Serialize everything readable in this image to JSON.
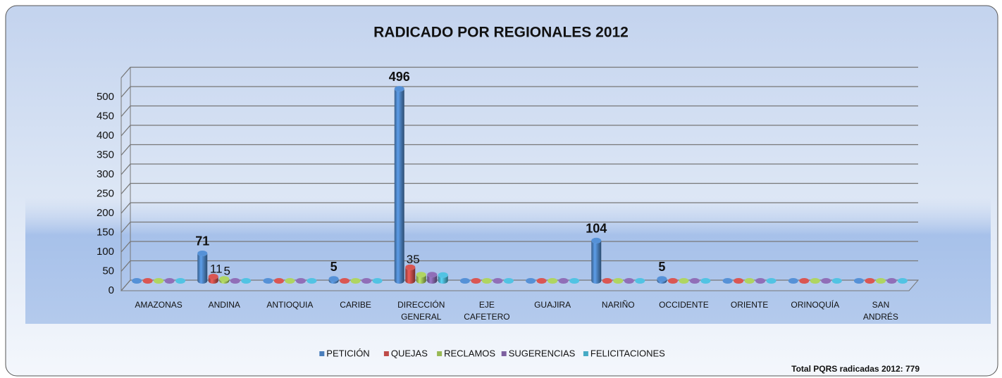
{
  "chart_data": {
    "type": "bar3d",
    "title": "RADICADO  POR REGIONALES 2012",
    "categories": [
      "AMAZONAS",
      "ANDINA",
      "ANTIOQUIA",
      "CARIBE",
      "DIRECCIÓN GENERAL",
      "EJE CAFETERO",
      "GUAJIRA",
      "NARIÑO",
      "OCCIDENTE",
      "ORIENTE",
      "ORINOQUÍA",
      "SAN ANDRÉS"
    ],
    "series": [
      {
        "name": "PETICIÓN",
        "color": "#4a7ebb",
        "values": [
          0,
          71,
          0,
          5,
          496,
          0,
          0,
          104,
          5,
          0,
          0,
          0
        ],
        "value_labels": [
          null,
          "71",
          null,
          "5",
          "496",
          null,
          null,
          "104",
          "5",
          null,
          null,
          null
        ]
      },
      {
        "name": "QUEJAS",
        "color": "#be4b48",
        "values": [
          0,
          11,
          0,
          0,
          35,
          0,
          0,
          0,
          0,
          0,
          0,
          0
        ],
        "value_labels": [
          null,
          "11",
          null,
          null,
          "35",
          null,
          null,
          null,
          null,
          null,
          null,
          null
        ]
      },
      {
        "name": "RECLAMOS",
        "color": "#98b954",
        "values": [
          0,
          5,
          0,
          0,
          16,
          0,
          0,
          0,
          0,
          0,
          0,
          0
        ],
        "value_labels": [
          null,
          "5",
          null,
          null,
          null,
          null,
          null,
          null,
          null,
          null,
          null,
          null
        ]
      },
      {
        "name": "SUGERENCIAS",
        "color": "#7d60a0",
        "values": [
          0,
          0,
          0,
          0,
          16,
          0,
          0,
          0,
          0,
          0,
          0,
          0
        ]
      },
      {
        "name": "FELICITACIONES",
        "color": "#46aac5",
        "values": [
          0,
          0,
          0,
          0,
          15,
          0,
          0,
          0,
          0,
          0,
          0,
          0
        ]
      }
    ],
    "ylim": [
      0,
      550
    ],
    "yticks": [
      0,
      50,
      100,
      150,
      200,
      250,
      300,
      350,
      400,
      450,
      500
    ],
    "grid": true,
    "legend": "bottom",
    "annotation": "Total PQRS radicadas 2012: 779"
  }
}
